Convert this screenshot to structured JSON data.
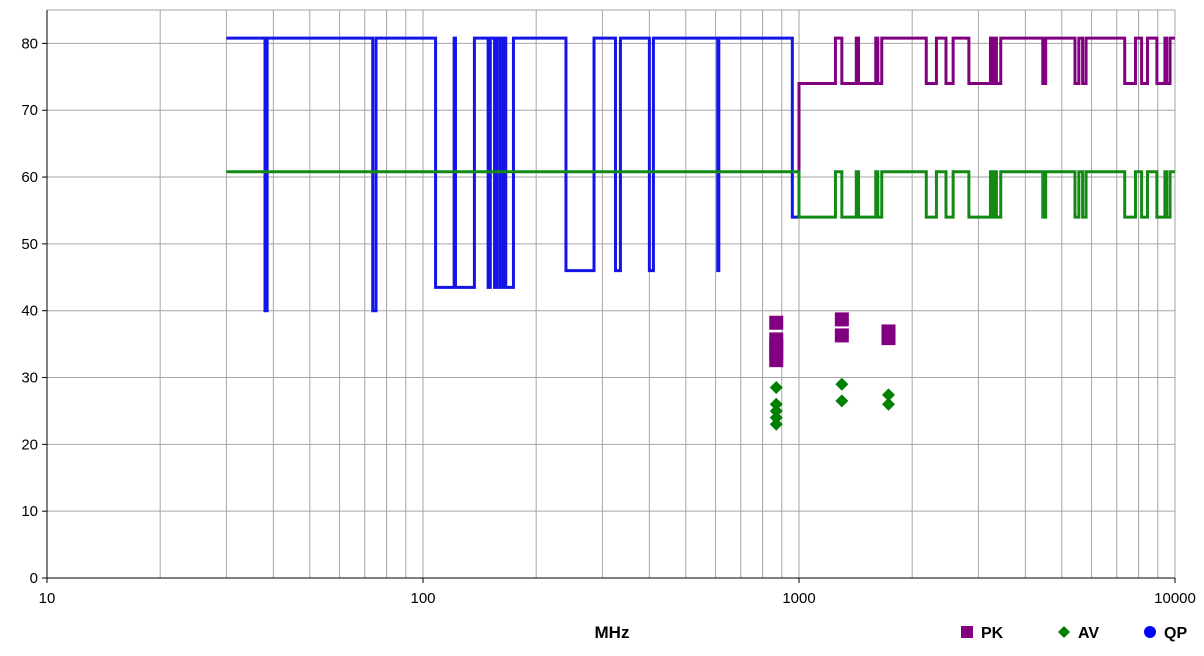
{
  "chart_data": {
    "type": "line",
    "xlabel": "MHz",
    "ylabel": "",
    "xscale": "log",
    "xlim": [
      10,
      10000
    ],
    "ylim": [
      0,
      85
    ],
    "x_ticks": [
      10,
      100,
      1000,
      10000
    ],
    "x_tick_labels": [
      "10",
      "100",
      "1000",
      "10000"
    ],
    "y_ticks": [
      0,
      10,
      20,
      30,
      40,
      50,
      60,
      70,
      80
    ],
    "y_tick_labels": [
      "0",
      "10",
      "20",
      "30",
      "40",
      "50",
      "60",
      "70",
      "80"
    ],
    "grid": true,
    "legend_position": "bottom-right",
    "legend": [
      {
        "name": "PK",
        "color": "#800080",
        "marker": "square"
      },
      {
        "name": "AV",
        "color": "#008000",
        "marker": "diamond"
      },
      {
        "name": "QP",
        "color": "#0000ff",
        "marker": "circle"
      }
    ],
    "series": [
      {
        "name": "QP-limit",
        "kind": "step-line",
        "color": "#1414e6",
        "points": [
          [
            30,
            80.8
          ],
          [
            38,
            80.8
          ],
          [
            38,
            40
          ],
          [
            38.5,
            40
          ],
          [
            38.5,
            80.8
          ],
          [
            73.5,
            80.8
          ],
          [
            73.5,
            40
          ],
          [
            75,
            40
          ],
          [
            75,
            80.8
          ],
          [
            108,
            80.8
          ],
          [
            108,
            43.5
          ],
          [
            121,
            43.5
          ],
          [
            121,
            80.8
          ],
          [
            122,
            80.8
          ],
          [
            122,
            43.5
          ],
          [
            137,
            43.5
          ],
          [
            137,
            80.8
          ],
          [
            149,
            80.8
          ],
          [
            149,
            43.5
          ],
          [
            151,
            43.5
          ],
          [
            151,
            80.8
          ],
          [
            155,
            80.8
          ],
          [
            155,
            43.5
          ],
          [
            157,
            43.5
          ],
          [
            157,
            80.8
          ],
          [
            160,
            80.8
          ],
          [
            160,
            43.5
          ],
          [
            163,
            43.5
          ],
          [
            163,
            80.8
          ],
          [
            166,
            80.8
          ],
          [
            166,
            43.5
          ],
          [
            174,
            43.5
          ],
          [
            174,
            80.8
          ],
          [
            240,
            80.8
          ],
          [
            240,
            46
          ],
          [
            285,
            46
          ],
          [
            285,
            80.8
          ],
          [
            325,
            80.8
          ],
          [
            325,
            46
          ],
          [
            335,
            46
          ],
          [
            335,
            80.8
          ],
          [
            400,
            80.8
          ],
          [
            400,
            46
          ],
          [
            410,
            46
          ],
          [
            410,
            80.8
          ],
          [
            608,
            80.8
          ],
          [
            608,
            46
          ],
          [
            612,
            46
          ],
          [
            612,
            80.8
          ],
          [
            960,
            80.8
          ],
          [
            960,
            54
          ],
          [
            1000,
            54
          ]
        ]
      },
      {
        "name": "PK-limit",
        "kind": "step-line",
        "color": "#800080",
        "points": [
          [
            1000,
            54
          ],
          [
            1000,
            74
          ],
          [
            1250,
            74
          ],
          [
            1250,
            80.8
          ],
          [
            1300,
            80.8
          ],
          [
            1300,
            74
          ],
          [
            1420,
            74
          ],
          [
            1420,
            80.8
          ],
          [
            1440,
            80.8
          ],
          [
            1440,
            74
          ],
          [
            1600,
            74
          ],
          [
            1600,
            80.8
          ],
          [
            1620,
            80.8
          ],
          [
            1620,
            74
          ],
          [
            1660,
            74
          ],
          [
            1660,
            80.8
          ],
          [
            2180,
            80.8
          ],
          [
            2180,
            74
          ],
          [
            2320,
            74
          ],
          [
            2320,
            80.8
          ],
          [
            2460,
            80.8
          ],
          [
            2460,
            74
          ],
          [
            2570,
            74
          ],
          [
            2570,
            80.8
          ],
          [
            2830,
            80.8
          ],
          [
            2830,
            74
          ],
          [
            3230,
            74
          ],
          [
            3230,
            80.8
          ],
          [
            3260,
            80.8
          ],
          [
            3260,
            74
          ],
          [
            3320,
            74
          ],
          [
            3320,
            80.8
          ],
          [
            3350,
            80.8
          ],
          [
            3350,
            74
          ],
          [
            3440,
            74
          ],
          [
            3440,
            80.8
          ],
          [
            4450,
            80.8
          ],
          [
            4450,
            74
          ],
          [
            4530,
            74
          ],
          [
            4530,
            80.8
          ],
          [
            5420,
            80.8
          ],
          [
            5420,
            74
          ],
          [
            5550,
            74
          ],
          [
            5550,
            80.8
          ],
          [
            5680,
            80.8
          ],
          [
            5680,
            74
          ],
          [
            5800,
            74
          ],
          [
            5800,
            80.8
          ],
          [
            7350,
            80.8
          ],
          [
            7350,
            74
          ],
          [
            7850,
            74
          ],
          [
            7850,
            80.8
          ],
          [
            8150,
            80.8
          ],
          [
            8150,
            74
          ],
          [
            8450,
            74
          ],
          [
            8450,
            80.8
          ],
          [
            8950,
            80.8
          ],
          [
            8950,
            74
          ],
          [
            9400,
            74
          ],
          [
            9400,
            80.8
          ],
          [
            9500,
            80.8
          ],
          [
            9500,
            74
          ],
          [
            9700,
            74
          ],
          [
            9700,
            80.8
          ],
          [
            10000,
            80.8
          ]
        ]
      },
      {
        "name": "AV-limit",
        "kind": "step-line",
        "color": "#138a13",
        "points": [
          [
            30,
            60.8
          ],
          [
            1000,
            60.8
          ],
          [
            1000,
            54
          ],
          [
            1250,
            54
          ],
          [
            1250,
            60.8
          ],
          [
            1300,
            60.8
          ],
          [
            1300,
            54
          ],
          [
            1420,
            54
          ],
          [
            1420,
            60.8
          ],
          [
            1440,
            60.8
          ],
          [
            1440,
            54
          ],
          [
            1600,
            54
          ],
          [
            1600,
            60.8
          ],
          [
            1620,
            60.8
          ],
          [
            1620,
            54
          ],
          [
            1660,
            54
          ],
          [
            1660,
            60.8
          ],
          [
            2180,
            60.8
          ],
          [
            2180,
            54
          ],
          [
            2320,
            54
          ],
          [
            2320,
            60.8
          ],
          [
            2460,
            60.8
          ],
          [
            2460,
            54
          ],
          [
            2570,
            54
          ],
          [
            2570,
            60.8
          ],
          [
            2830,
            60.8
          ],
          [
            2830,
            54
          ],
          [
            3230,
            54
          ],
          [
            3230,
            60.8
          ],
          [
            3260,
            60.8
          ],
          [
            3260,
            54
          ],
          [
            3320,
            54
          ],
          [
            3320,
            60.8
          ],
          [
            3350,
            60.8
          ],
          [
            3350,
            54
          ],
          [
            3440,
            54
          ],
          [
            3440,
            60.8
          ],
          [
            4450,
            60.8
          ],
          [
            4450,
            54
          ],
          [
            4530,
            54
          ],
          [
            4530,
            60.8
          ],
          [
            5420,
            60.8
          ],
          [
            5420,
            54
          ],
          [
            5550,
            54
          ],
          [
            5550,
            60.8
          ],
          [
            5680,
            60.8
          ],
          [
            5680,
            54
          ],
          [
            5800,
            54
          ],
          [
            5800,
            60.8
          ],
          [
            7350,
            60.8
          ],
          [
            7350,
            54
          ],
          [
            7850,
            54
          ],
          [
            7850,
            60.8
          ],
          [
            8150,
            60.8
          ],
          [
            8150,
            54
          ],
          [
            8450,
            54
          ],
          [
            8450,
            60.8
          ],
          [
            8950,
            60.8
          ],
          [
            8950,
            54
          ],
          [
            9400,
            54
          ],
          [
            9400,
            60.8
          ],
          [
            9500,
            60.8
          ],
          [
            9500,
            54
          ],
          [
            9700,
            54
          ],
          [
            9700,
            60.8
          ],
          [
            10000,
            60.8
          ]
        ]
      },
      {
        "name": "PK",
        "kind": "scatter",
        "marker": "square",
        "color": "#800080",
        "points": [
          [
            870,
            38.2
          ],
          [
            870,
            35.7
          ],
          [
            870,
            34.8
          ],
          [
            870,
            33.6
          ],
          [
            870,
            32.6
          ],
          [
            1300,
            38.7
          ],
          [
            1300,
            36.3
          ],
          [
            1730,
            36.9
          ],
          [
            1730,
            35.9
          ]
        ]
      },
      {
        "name": "AV",
        "kind": "scatter",
        "marker": "diamond",
        "color": "#008000",
        "points": [
          [
            870,
            28.5
          ],
          [
            870,
            26
          ],
          [
            870,
            25
          ],
          [
            870,
            24
          ],
          [
            870,
            23
          ],
          [
            1300,
            29
          ],
          [
            1300,
            26.5
          ],
          [
            1730,
            27.4
          ],
          [
            1730,
            26
          ]
        ]
      }
    ]
  }
}
